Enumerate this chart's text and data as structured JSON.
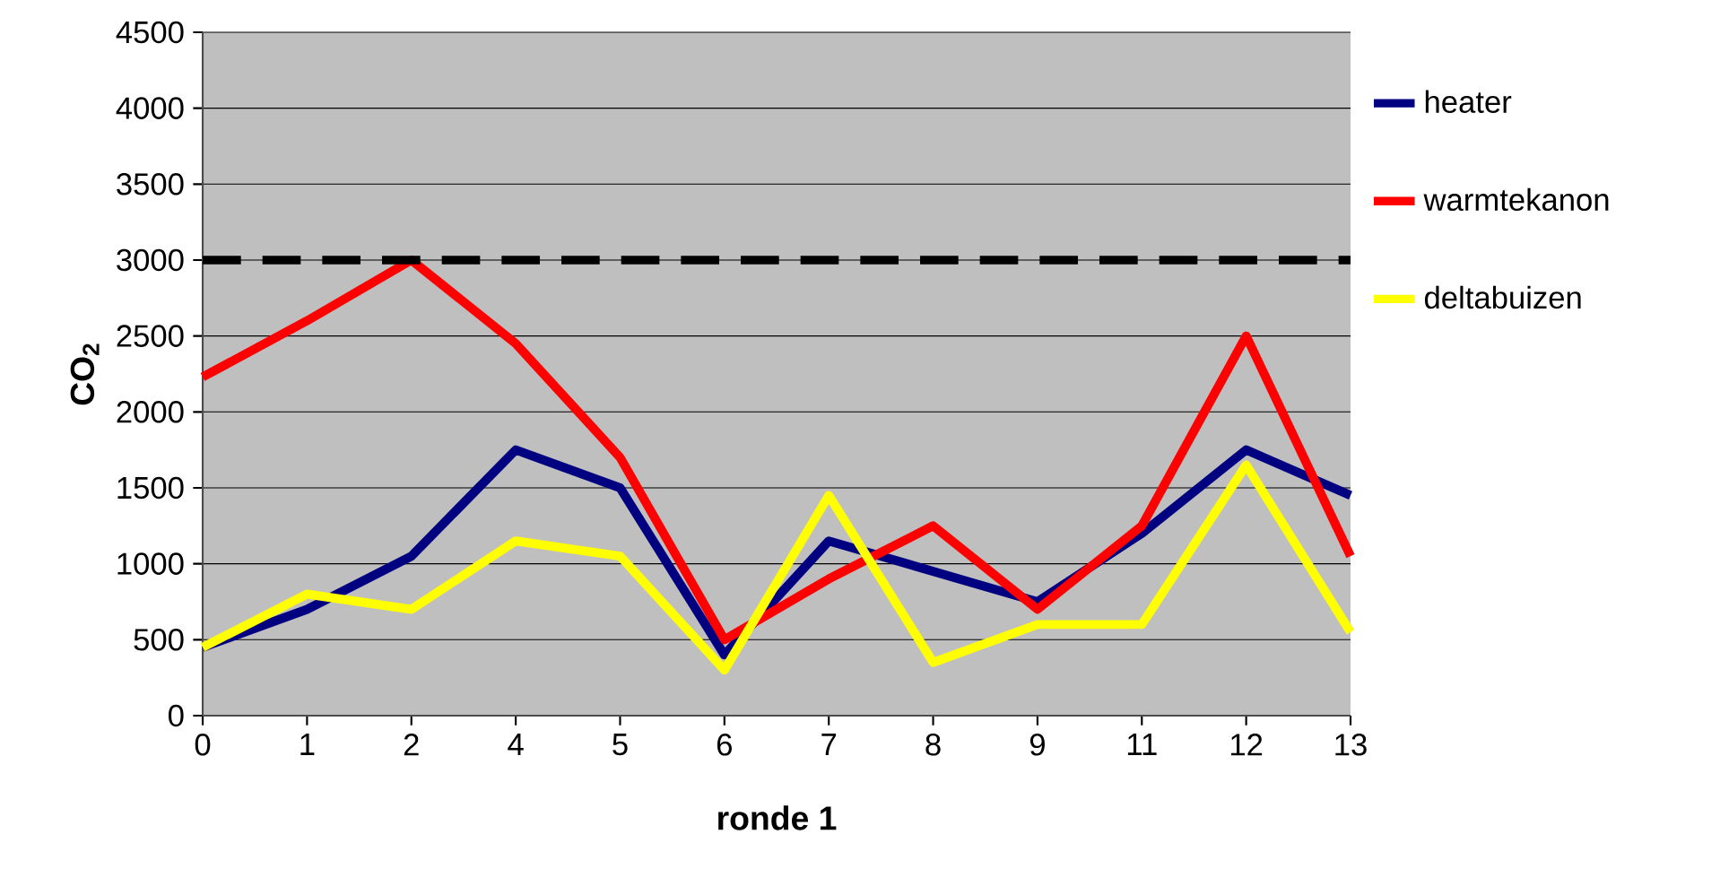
{
  "chart_data": {
    "type": "line",
    "xlabel": "ronde 1",
    "ylabel": "CO$_{2}$",
    "categories": [
      "0",
      "1",
      "2",
      "4",
      "5",
      "6",
      "7",
      "8",
      "9",
      "11",
      "12",
      "13"
    ],
    "series": [
      {
        "name": "heater",
        "color": "#000080",
        "values": [
          450,
          700,
          1050,
          1750,
          1500,
          400,
          1150,
          950,
          750,
          1200,
          1750,
          1450
        ]
      },
      {
        "name": "warmtekanon",
        "color": "#ff0000",
        "values": [
          2230,
          2600,
          3000,
          2450,
          1700,
          500,
          900,
          1250,
          700,
          1250,
          2500,
          1050
        ]
      },
      {
        "name": "deltabuizen",
        "color": "#ffff00",
        "values": [
          450,
          800,
          700,
          1150,
          1050,
          300,
          1450,
          350,
          600,
          600,
          1650,
          550
        ]
      }
    ],
    "ylim": [
      0,
      4500
    ],
    "yticks": [
      0,
      500,
      1000,
      1500,
      2000,
      2500,
      3000,
      3500,
      4000,
      4500
    ],
    "ref_lines": [
      {
        "axis": "y",
        "value": 3000,
        "color": "#000000",
        "line_style": "dashed"
      }
    ],
    "grid": "y",
    "legend": "right",
    "marker": "none",
    "line_style": "solid"
  }
}
